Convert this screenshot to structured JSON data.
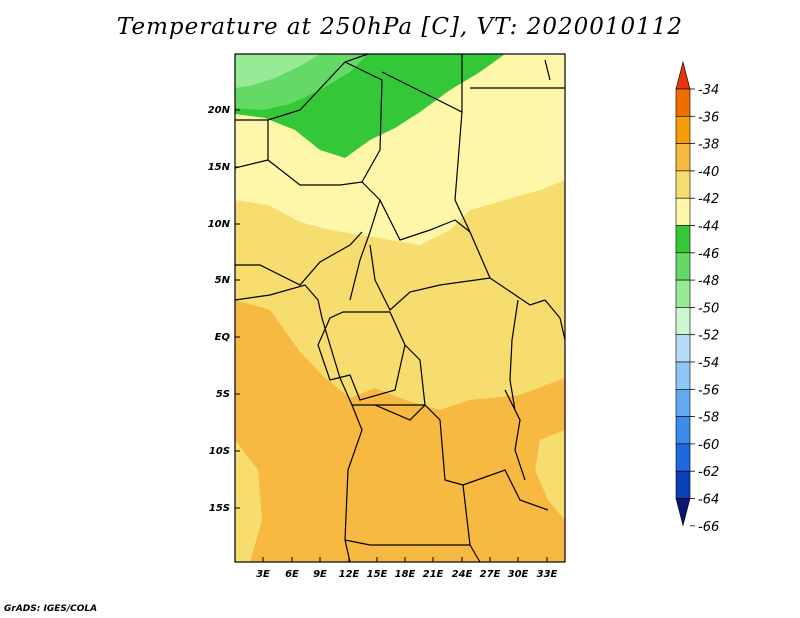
{
  "title": "Temperature at 250hPa [C], VT: 2020010112",
  "credit": "GrADS: IGES/COLA",
  "map": {
    "lon_labels": [
      "3E",
      "6E",
      "9E",
      "12E",
      "15E",
      "18E",
      "21E",
      "24E",
      "27E",
      "30E",
      "33E"
    ],
    "lat_labels": [
      "20N",
      "15N",
      "10N",
      "5N",
      "EQ",
      "5S",
      "10S",
      "15S"
    ]
  },
  "colorbar": {
    "labels": [
      "-34",
      "-36",
      "-38",
      "-40",
      "-42",
      "-44",
      "-46",
      "-48",
      "-50",
      "-52",
      "-54",
      "-56",
      "-58",
      "-60",
      "-62",
      "-64",
      "-66"
    ],
    "colors": [
      "#e8350d",
      "#f06e00",
      "#f59d0a",
      "#f7b942",
      "#f7dc6f",
      "#fef7aa",
      "#34c838",
      "#64d966",
      "#98eb96",
      "#d0f8d0",
      "#b7dcf8",
      "#8ec6f6",
      "#62a9ef",
      "#3b8beb",
      "#1e69e0",
      "#0b3fb8",
      "#0b1570"
    ]
  }
}
